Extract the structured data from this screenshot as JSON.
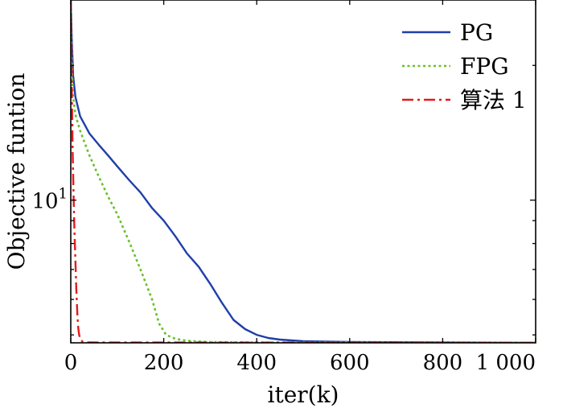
{
  "chart_data": {
    "type": "line",
    "xlabel": "iter(k)",
    "ylabel": "Objective funtion",
    "x_ticks": [
      "0",
      "200",
      "400",
      "600",
      "800",
      "1 000"
    ],
    "y_tick_label": {
      "base": "10",
      "exp": "1"
    },
    "xlim": [
      0,
      1000
    ],
    "ylim": [
      4.8,
      28
    ],
    "y_scale": "log",
    "grid": false,
    "legend_position": "top-right",
    "series": [
      {
        "name": "PG",
        "color": "#1f3fa8",
        "style": "solid",
        "points": [
          [
            0,
            28
          ],
          [
            2,
            23
          ],
          [
            5,
            19
          ],
          [
            10,
            17
          ],
          [
            20,
            15.4
          ],
          [
            40,
            14.1
          ],
          [
            60,
            13.3
          ],
          [
            80,
            12.6
          ],
          [
            100,
            11.9
          ],
          [
            125,
            11.1
          ],
          [
            150,
            10.4
          ],
          [
            175,
            9.6
          ],
          [
            200,
            9.0
          ],
          [
            225,
            8.3
          ],
          [
            250,
            7.6
          ],
          [
            275,
            7.1
          ],
          [
            300,
            6.5
          ],
          [
            325,
            5.9
          ],
          [
            350,
            5.4
          ],
          [
            375,
            5.15
          ],
          [
            400,
            5.0
          ],
          [
            425,
            4.92
          ],
          [
            450,
            4.88
          ],
          [
            500,
            4.84
          ],
          [
            600,
            4.82
          ],
          [
            800,
            4.81
          ],
          [
            1000,
            4.8
          ]
        ]
      },
      {
        "name": "FPG",
        "color": "#6abf2a",
        "style": "dotted",
        "points": [
          [
            0,
            28
          ],
          [
            2,
            20
          ],
          [
            5,
            17
          ],
          [
            10,
            15.5
          ],
          [
            20,
            14.3
          ],
          [
            40,
            12.6
          ],
          [
            60,
            11.3
          ],
          [
            80,
            10.2
          ],
          [
            100,
            9.3
          ],
          [
            125,
            8.1
          ],
          [
            150,
            7.0
          ],
          [
            175,
            6.0
          ],
          [
            190,
            5.3
          ],
          [
            205,
            5.0
          ],
          [
            225,
            4.9
          ],
          [
            250,
            4.85
          ],
          [
            300,
            4.82
          ],
          [
            400,
            4.81
          ],
          [
            1000,
            4.8
          ]
        ]
      },
      {
        "name": "算法 1",
        "color": "#e31a1c",
        "style": "dashdot",
        "points": [
          [
            0,
            28
          ],
          [
            2,
            18
          ],
          [
            4,
            13
          ],
          [
            6,
            10.2
          ],
          [
            8,
            8.5
          ],
          [
            10,
            7.3
          ],
          [
            12,
            6.3
          ],
          [
            14,
            5.6
          ],
          [
            16,
            5.2
          ],
          [
            18,
            5.0
          ],
          [
            21,
            4.88
          ],
          [
            25,
            4.83
          ],
          [
            35,
            4.81
          ],
          [
            1000,
            4.8
          ]
        ]
      }
    ]
  }
}
